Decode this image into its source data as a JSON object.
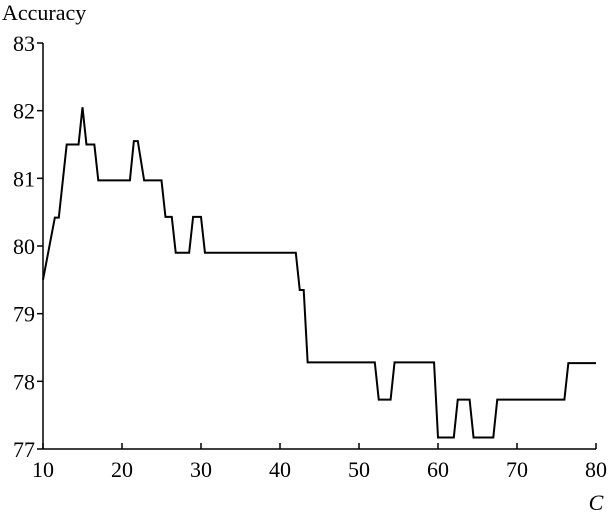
{
  "chart_data": {
    "type": "line",
    "y_label": "Accuracy",
    "x_label": "C",
    "x": [
      10,
      11.5,
      12,
      13,
      14.5,
      15,
      15.5,
      16.5,
      17,
      21,
      21.5,
      22,
      22.8,
      25,
      25.5,
      26.3,
      26.8,
      28.5,
      29,
      30,
      30.5,
      42,
      42.5,
      43,
      43.5,
      52,
      52.5,
      54,
      54.5,
      59.5,
      60,
      62,
      62.5,
      64,
      64.5,
      67,
      67.5,
      76,
      76.5,
      80
    ],
    "series": [
      {
        "color": "#000000",
        "values": [
          79.5,
          80.42,
          80.42,
          81.5,
          81.5,
          82.05,
          81.5,
          81.5,
          80.97,
          80.97,
          81.55,
          81.55,
          80.97,
          80.97,
          80.43,
          80.43,
          79.9,
          79.9,
          80.43,
          80.43,
          79.9,
          79.9,
          79.35,
          79.35,
          78.28,
          78.28,
          77.73,
          77.73,
          78.28,
          78.28,
          77.17,
          77.17,
          77.73,
          77.73,
          77.17,
          77.17,
          77.73,
          77.73,
          78.27,
          78.27
        ]
      }
    ],
    "xlim": [
      10,
      80
    ],
    "xticks": [
      10,
      20,
      30,
      40,
      50,
      60,
      70,
      80
    ],
    "ylim": [
      77,
      83
    ],
    "yticks": [
      77,
      78,
      79,
      80,
      81,
      82,
      83
    ]
  }
}
